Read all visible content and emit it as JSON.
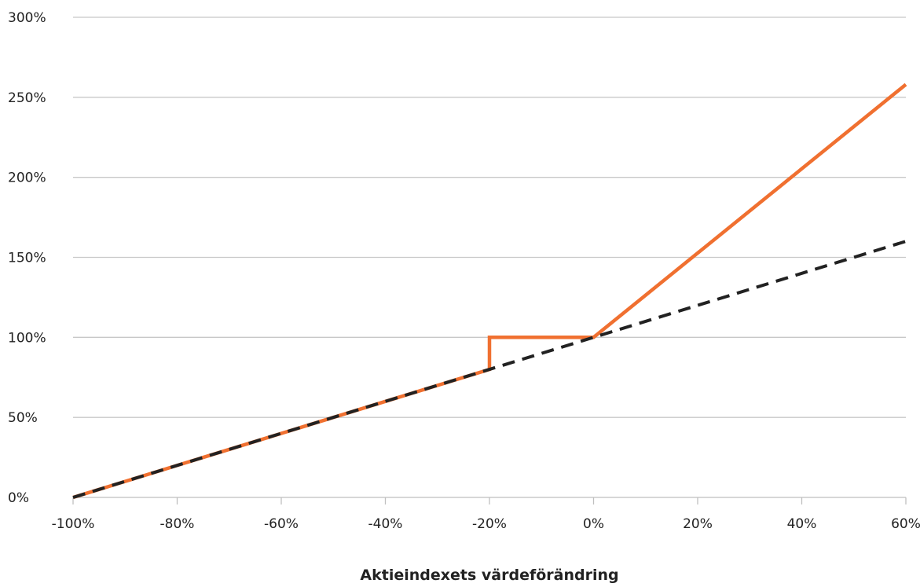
{
  "chart_data": {
    "type": "line",
    "title": "",
    "xlabel": "Aktieindexets värdeförändring",
    "ylabel": "",
    "xlim": [
      -100,
      60
    ],
    "ylim": [
      0,
      300
    ],
    "x_ticks": [
      -100,
      -80,
      -60,
      -40,
      -20,
      0,
      20,
      40,
      60
    ],
    "x_tick_labels": [
      "-100%",
      "-80%",
      "-60%",
      "-40%",
      "-20%",
      "0%",
      "20%",
      "40%",
      "60%"
    ],
    "y_ticks": [
      0,
      50,
      100,
      150,
      200,
      250,
      300
    ],
    "y_tick_labels": [
      "0%",
      "50%",
      "100%",
      "150%",
      "200%",
      "250%",
      "300%"
    ],
    "grid": "horizontal",
    "legend": "none",
    "series": [
      {
        "color": "#f07030",
        "style": "solid",
        "points": [
          [
            -100,
            0
          ],
          [
            -20,
            80
          ],
          [
            -20,
            100
          ],
          [
            0,
            100
          ],
          [
            60,
            258
          ]
        ]
      },
      {
        "color": "#222222",
        "style": "dashed",
        "points": [
          [
            -100,
            0
          ],
          [
            60,
            160
          ]
        ]
      }
    ]
  }
}
